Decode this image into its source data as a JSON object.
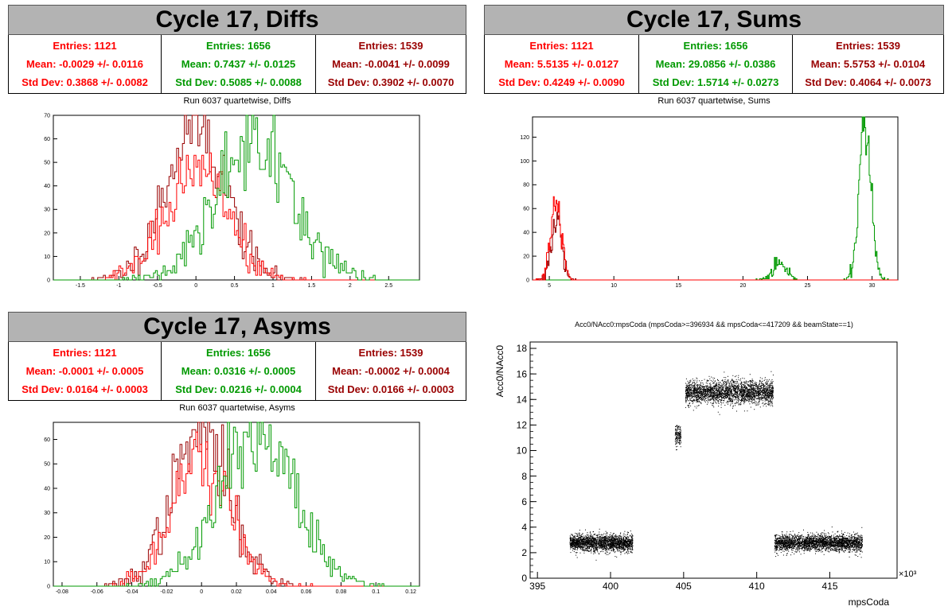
{
  "colors": {
    "red": "#ff0000",
    "green": "#009900",
    "darkred": "#990000"
  },
  "diffs": {
    "banner": "Cycle 17, Diffs",
    "subtitle": "Run 6037 quartetwise, Diffs",
    "stats": [
      {
        "entries": "Entries: 1121",
        "mean": "Mean: -0.0029 +/- 0.0116",
        "std": "Std Dev: 0.3868 +/- 0.0082",
        "color": "#ff0000"
      },
      {
        "entries": "Entries: 1656",
        "mean": "Mean: 0.7437 +/- 0.0125",
        "std": "Std Dev: 0.5085 +/- 0.0088",
        "color": "#009900"
      },
      {
        "entries": "Entries: 1539",
        "mean": "Mean: -0.0041 +/- 0.0099",
        "std": "Std Dev: 0.3902 +/- 0.0070",
        "color": "#990000"
      }
    ]
  },
  "sums": {
    "banner": "Cycle 17, Sums",
    "subtitle": "Run 6037 quartetwise, Sums",
    "stats": [
      {
        "entries": "Entries: 1121",
        "mean": "Mean: 5.5135 +/- 0.0127",
        "std": "Std Dev: 0.4249 +/- 0.0090",
        "color": "#ff0000"
      },
      {
        "entries": "Entries: 1656",
        "mean": "Mean: 29.0856 +/- 0.0386",
        "std": "Std Dev: 1.5714 +/- 0.0273",
        "color": "#009900"
      },
      {
        "entries": "Entries: 1539",
        "mean": "Mean: 5.5753 +/- 0.0104",
        "std": "Std Dev: 0.4064 +/- 0.0073",
        "color": "#990000"
      }
    ]
  },
  "asyms": {
    "banner": "Cycle 17, Asyms",
    "subtitle": "Run 6037 quartetwise, Asyms",
    "stats": [
      {
        "entries": "Entries: 1121",
        "mean": "Mean: -0.0001 +/- 0.0005",
        "std": "Std Dev: 0.0164 +/- 0.0003",
        "color": "#ff0000"
      },
      {
        "entries": "Entries: 1656",
        "mean": "Mean: 0.0316 +/- 0.0005",
        "std": "Std Dev: 0.0216 +/- 0.0004",
        "color": "#009900"
      },
      {
        "entries": "Entries: 1539",
        "mean": "Mean: -0.0002 +/- 0.0004",
        "std": "Std Dev: 0.0166 +/- 0.0003",
        "color": "#990000"
      }
    ]
  },
  "scatter": {
    "title": "Acc0/NAcc0:mpsCoda (mpsCoda>=396934 && mpsCoda<=417209 && beamState==1)"
  },
  "chart_data": [
    {
      "type": "histogram",
      "id": "diffs",
      "xlim": [
        -1.85,
        2.9
      ],
      "ylim": [
        0,
        70
      ],
      "xticks": [
        -1.5,
        -1,
        -0.5,
        0,
        0.5,
        1,
        1.5,
        2,
        2.5
      ],
      "xtick_labels": [
        "-1.5",
        "-1",
        "-0.5",
        "0",
        "0.5",
        "1",
        "1.5",
        "2",
        "2.5"
      ],
      "yticks": [
        0,
        10,
        20,
        30,
        40,
        50,
        60,
        70
      ],
      "series": [
        {
          "color": "#990000",
          "mean": -0.0041,
          "std": 0.3902,
          "peak": 66,
          "entries": 1539
        },
        {
          "color": "#ff0000",
          "mean": -0.0029,
          "std": 0.3868,
          "peak": 50,
          "entries": 1121
        },
        {
          "color": "#009900",
          "mean": 0.7437,
          "std": 0.5085,
          "peak": 58,
          "entries": 1656
        }
      ]
    },
    {
      "type": "histogram",
      "id": "sums",
      "xlim": [
        3.7,
        32
      ],
      "ylim": [
        0,
        137
      ],
      "xticks": [
        5,
        10,
        15,
        20,
        25,
        30
      ],
      "xtick_labels": [
        "5",
        "10",
        "15",
        "20",
        "25",
        "30"
      ],
      "yticks": [
        0,
        20,
        40,
        60,
        80,
        100,
        120
      ],
      "series": [
        {
          "color": "#009900",
          "components": [
            {
              "mean": 22.8,
              "std": 0.5,
              "peak": 13
            },
            {
              "mean": 29.45,
              "std": 0.45,
              "peak": 132
            }
          ]
        },
        {
          "color": "#990000",
          "components": [
            {
              "mean": 5.58,
              "std": 0.41,
              "peak": 48
            }
          ]
        },
        {
          "color": "#ff0000",
          "components": [
            {
              "mean": 5.51,
              "std": 0.42,
              "peak": 58
            }
          ]
        }
      ]
    },
    {
      "type": "histogram",
      "id": "asyms",
      "xlim": [
        -0.085,
        0.125
      ],
      "ylim": [
        0,
        67
      ],
      "xticks": [
        -0.08,
        -0.06,
        -0.04,
        -0.02,
        0,
        0.02,
        0.04,
        0.06,
        0.08,
        0.1,
        0.12
      ],
      "xtick_labels": [
        "-0.08",
        "-0.06",
        "-0.04",
        "-0.02",
        "0",
        "0.02",
        "0.04",
        "0.06",
        "0.08",
        "0.1",
        "0.12"
      ],
      "yticks": [
        0,
        10,
        20,
        30,
        40,
        50,
        60
      ],
      "series": [
        {
          "color": "#990000",
          "mean": -0.0002,
          "std": 0.0166,
          "peak": 63,
          "entries": 1539
        },
        {
          "color": "#ff0000",
          "mean": -0.0001,
          "std": 0.0164,
          "peak": 50,
          "entries": 1121
        },
        {
          "color": "#009900",
          "mean": 0.0316,
          "std": 0.0216,
          "peak": 63,
          "entries": 1656
        }
      ]
    },
    {
      "type": "scatter",
      "id": "scatter",
      "xlabel": "mpsCoda",
      "ylabel": "Acc0/NAcc0",
      "xexp": "×10³",
      "xlim": [
        394.5,
        419.6
      ],
      "ylim": [
        0,
        18.5
      ],
      "xticks": [
        395,
        400,
        405,
        410,
        415
      ],
      "xtick_labels": [
        "395",
        "400",
        "405",
        "410",
        "415"
      ],
      "yticks": [
        0,
        2,
        4,
        6,
        8,
        10,
        12,
        14,
        16,
        18
      ],
      "ytick_labels": [
        "0",
        "2",
        "4",
        "6",
        "8",
        "10",
        "12",
        "14",
        "16",
        "18"
      ],
      "clusters": [
        {
          "x": [
            397.2,
            401.5
          ],
          "y_center": 2.8,
          "y_spread": 0.9,
          "n": 2200
        },
        {
          "x": [
            404.4,
            404.8
          ],
          "y_center": 11.2,
          "y_spread": 1.2,
          "n": 150
        },
        {
          "x": [
            405.1,
            411.1
          ],
          "y_center": 14.6,
          "y_spread": 1.3,
          "n": 2700
        },
        {
          "x": [
            411.2,
            417.2
          ],
          "y_center": 2.8,
          "y_spread": 0.9,
          "n": 2800
        }
      ]
    }
  ]
}
